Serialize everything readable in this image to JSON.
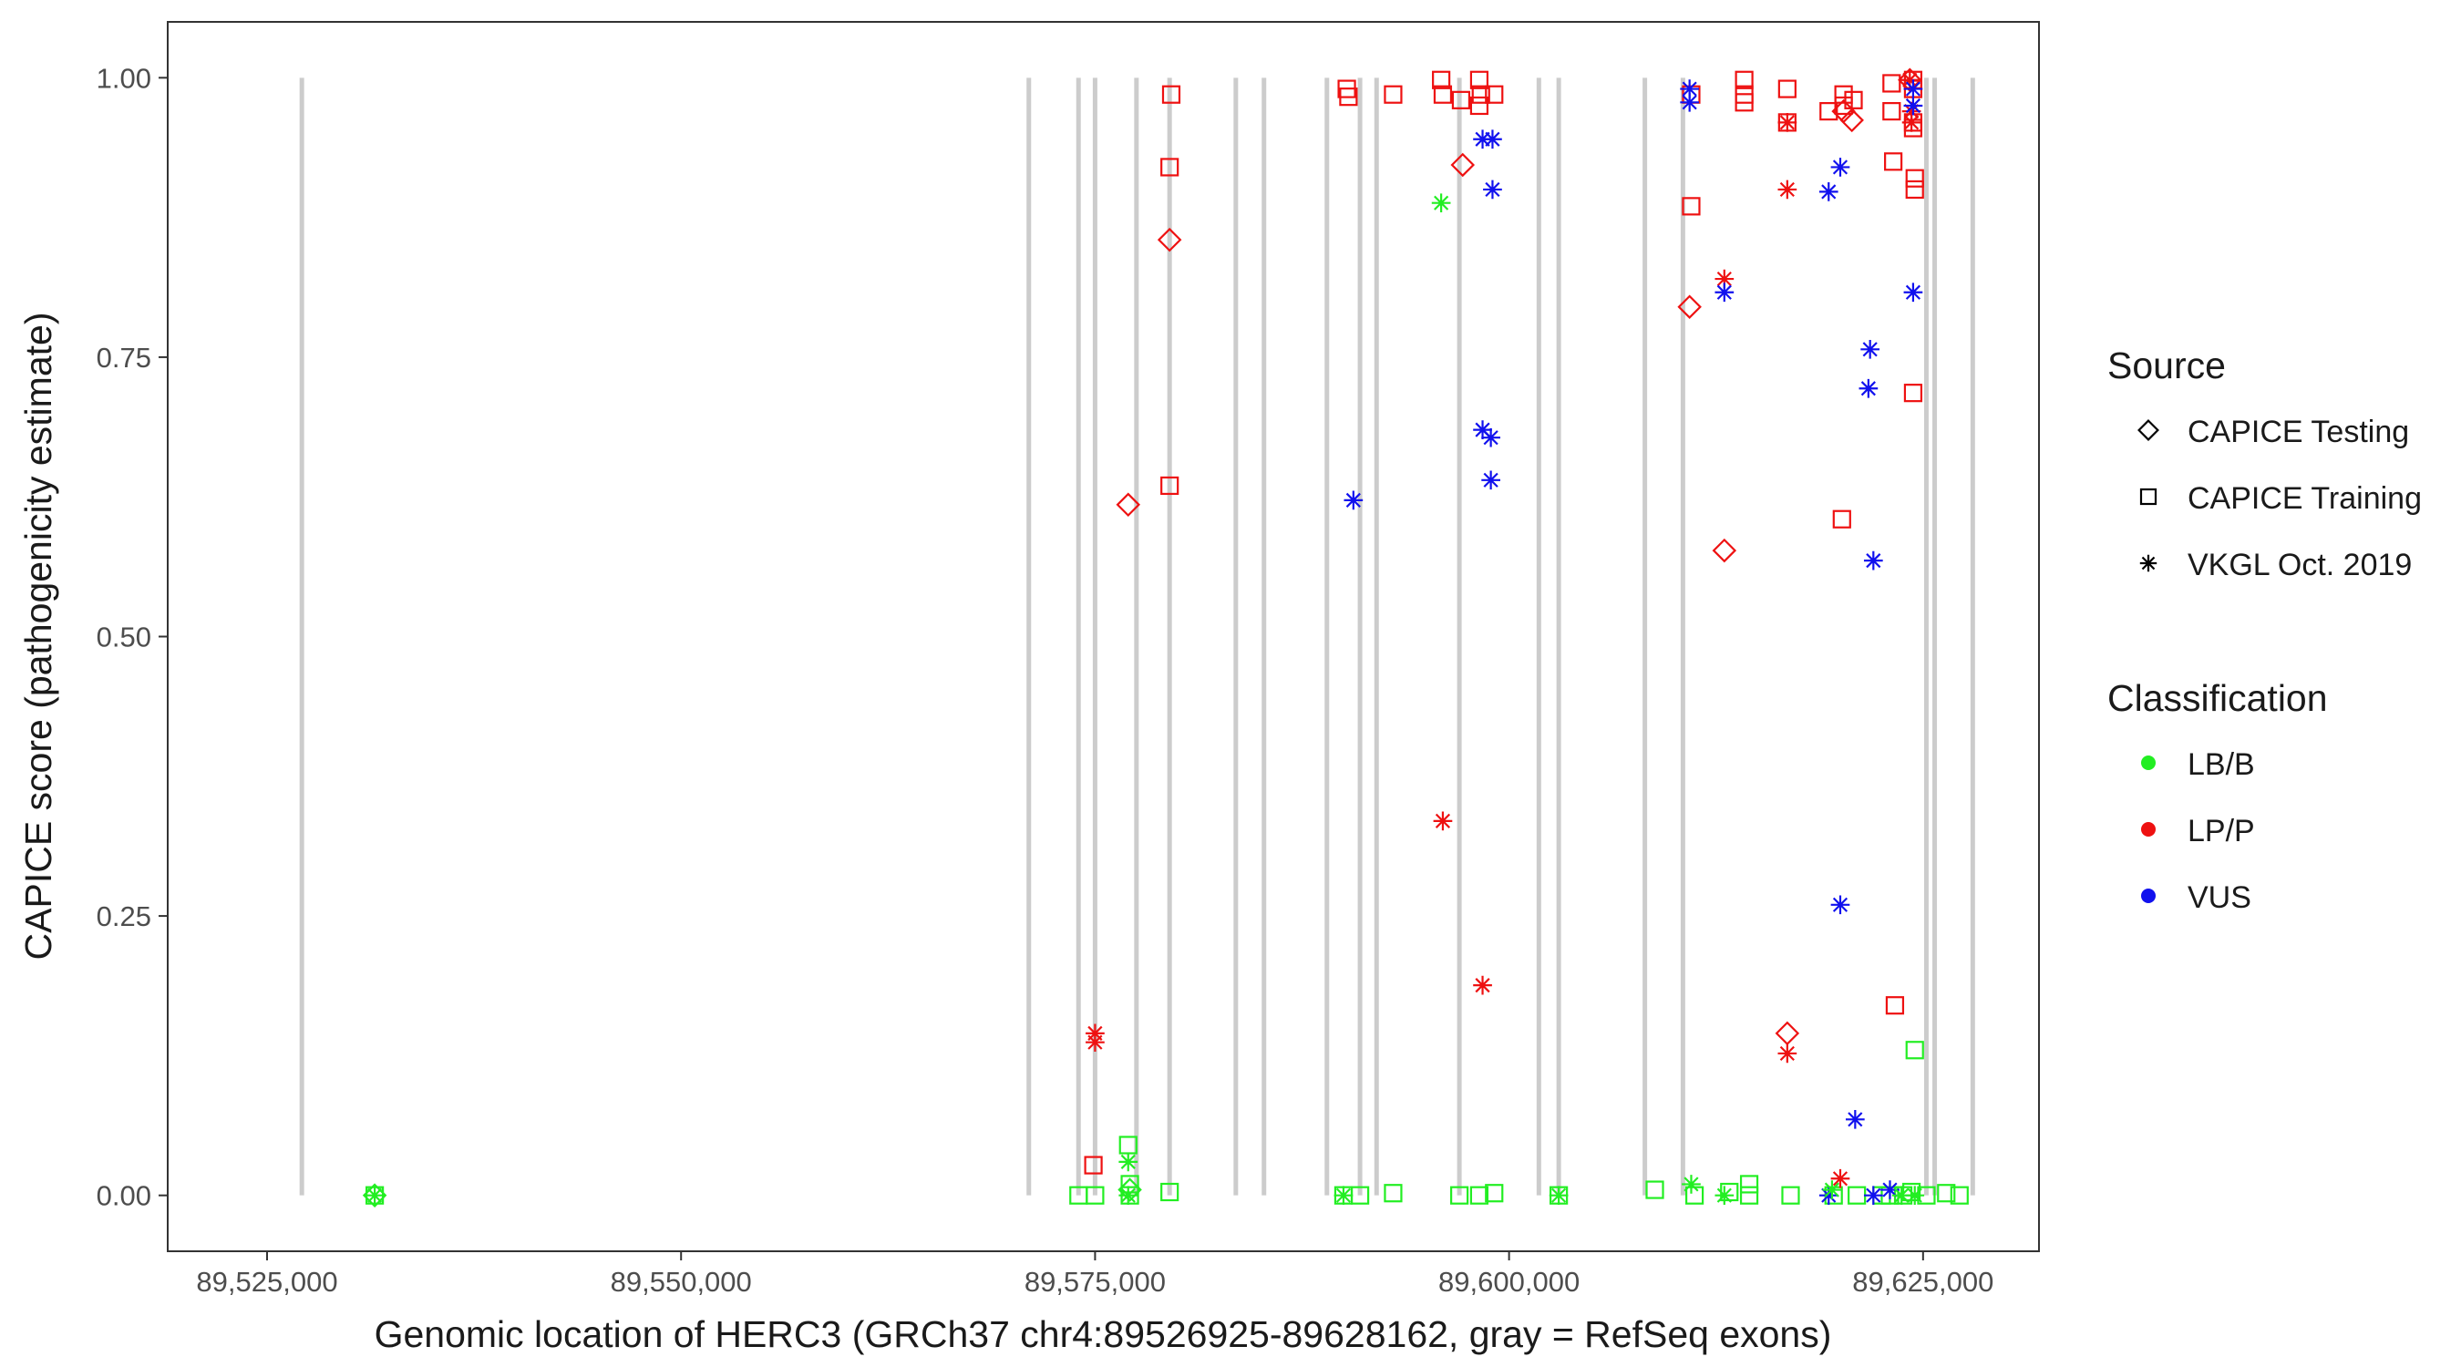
{
  "chart_data": {
    "type": "scatter",
    "title": "",
    "xlabel": "Genomic location of HERC3 (GRCh37 chr4:89526925-89628162, gray = RefSeq exons)",
    "ylabel": "CAPICE score (pathogenicity estimate)",
    "xlim": [
      89519000,
      89632000
    ],
    "ylim": [
      -0.05,
      1.05
    ],
    "x_ticks": [
      89525000,
      89550000,
      89575000,
      89600000,
      89625000
    ],
    "x_tick_labels": [
      "89,525,000",
      "89,550,000",
      "89,575,000",
      "89,600,000",
      "89,625,000"
    ],
    "y_ticks": [
      0,
      0.25,
      0.5,
      0.75,
      1
    ],
    "y_tick_labels": [
      "0.00",
      "0.25",
      "0.50",
      "0.75",
      "1.00"
    ],
    "grid": false,
    "legend_position": "right",
    "exon_color": "#cccccc",
    "exons": [
      89527100,
      89571000,
      89574000,
      89575000,
      89577500,
      89579500,
      89583500,
      89585200,
      89589000,
      89591000,
      89592000,
      89597000,
      89601800,
      89603000,
      89608200,
      89610500,
      89625200,
      89625700,
      89628000
    ],
    "legend": {
      "source_title": "Source",
      "source_entries": [
        {
          "label": "CAPICE Testing",
          "shape": "diamond"
        },
        {
          "label": "CAPICE Training",
          "shape": "square"
        },
        {
          "label": "VKGL Oct. 2019",
          "shape": "asterisk"
        }
      ],
      "class_title": "Classification",
      "class_entries": [
        {
          "label": "LB/B",
          "color": "#22ee22"
        },
        {
          "label": "LP/P",
          "color": "#ee1111"
        },
        {
          "label": "VUS",
          "color": "#1111ee"
        }
      ]
    },
    "series": [
      {
        "source": "CAPICE Training",
        "classification": "LP/P",
        "points": [
          [
            89579600,
            0.985
          ],
          [
            89579500,
            0.92
          ],
          [
            89579500,
            0.635
          ],
          [
            89574900,
            0.027
          ],
          [
            89590200,
            0.99
          ],
          [
            89590300,
            0.983
          ],
          [
            89593000,
            0.985
          ],
          [
            89595900,
            0.998
          ],
          [
            89596000,
            0.985
          ],
          [
            89597100,
            0.98
          ],
          [
            89598200,
            0.998
          ],
          [
            89598300,
            0.985
          ],
          [
            89598200,
            0.975
          ],
          [
            89599100,
            0.985
          ],
          [
            89611000,
            0.985
          ],
          [
            89611000,
            0.885
          ],
          [
            89614200,
            0.998
          ],
          [
            89614200,
            0.985
          ],
          [
            89614200,
            0.978
          ],
          [
            89616800,
            0.99
          ],
          [
            89616800,
            0.96
          ],
          [
            89619300,
            0.97
          ],
          [
            89620200,
            0.985
          ],
          [
            89620200,
            0.975
          ],
          [
            89620800,
            0.98
          ],
          [
            89620100,
            0.605
          ],
          [
            89623100,
            0.995
          ],
          [
            89623100,
            0.97
          ],
          [
            89623200,
            0.925
          ],
          [
            89623300,
            0.17
          ],
          [
            89624400,
            0.998
          ],
          [
            89624400,
            0.99
          ],
          [
            89624400,
            0.96
          ],
          [
            89624400,
            0.955
          ],
          [
            89624500,
            0.91
          ],
          [
            89624500,
            0.9
          ],
          [
            89624400,
            0.718
          ]
        ]
      },
      {
        "source": "CAPICE Training",
        "classification": "LB/B",
        "points": [
          [
            89531500,
            0.0
          ],
          [
            89574000,
            0.0
          ],
          [
            89575000,
            0.0
          ],
          [
            89577000,
            0.045
          ],
          [
            89577100,
            0.01
          ],
          [
            89577100,
            0.0
          ],
          [
            89579500,
            0.003
          ],
          [
            89590000,
            0.0
          ],
          [
            89591000,
            0.0
          ],
          [
            89593000,
            0.002
          ],
          [
            89597000,
            0.0
          ],
          [
            89598200,
            0.0
          ],
          [
            89599100,
            0.002
          ],
          [
            89603000,
            0.0
          ],
          [
            89608800,
            0.005
          ],
          [
            89611200,
            0.0
          ],
          [
            89613300,
            0.003
          ],
          [
            89614500,
            0.01
          ],
          [
            89614500,
            0.0
          ],
          [
            89617000,
            0.0
          ],
          [
            89619600,
            0.0
          ],
          [
            89621000,
            0.0
          ],
          [
            89622500,
            0.0
          ],
          [
            89623000,
            0.0
          ],
          [
            89623800,
            0.0
          ],
          [
            89624300,
            0.003
          ],
          [
            89624500,
            0.13
          ],
          [
            89625200,
            0.0
          ],
          [
            89626400,
            0.002
          ],
          [
            89627200,
            0.0
          ]
        ]
      },
      {
        "source": "CAPICE Testing",
        "classification": "LP/P",
        "points": [
          [
            89579500,
            0.855
          ],
          [
            89577000,
            0.618
          ],
          [
            89597200,
            0.922
          ],
          [
            89610900,
            0.795
          ],
          [
            89613000,
            0.577
          ],
          [
            89616800,
            0.145
          ],
          [
            89620200,
            0.97
          ],
          [
            89620700,
            0.962
          ],
          [
            89624200,
            0.998
          ]
        ]
      },
      {
        "source": "CAPICE Testing",
        "classification": "LB/B",
        "points": [
          [
            89531500,
            0.0
          ],
          [
            89577100,
            0.005
          ]
        ]
      },
      {
        "source": "VKGL Oct. 2019",
        "classification": "LP/P",
        "points": [
          [
            89575000,
            0.145
          ],
          [
            89575000,
            0.137
          ],
          [
            89596000,
            0.335
          ],
          [
            89598400,
            0.188
          ],
          [
            89613000,
            0.82
          ],
          [
            89616800,
            0.9
          ],
          [
            89616800,
            0.96
          ],
          [
            89616800,
            0.127
          ],
          [
            89620000,
            0.015
          ],
          [
            89624200,
            0.998
          ],
          [
            89624300,
            0.97
          ],
          [
            89624300,
            0.96
          ]
        ]
      },
      {
        "source": "VKGL Oct. 2019",
        "classification": "VUS",
        "points": [
          [
            89590600,
            0.622
          ],
          [
            89598400,
            0.945
          ],
          [
            89599000,
            0.945
          ],
          [
            89599000,
            0.9
          ],
          [
            89598400,
            0.685
          ],
          [
            89598900,
            0.678
          ],
          [
            89598900,
            0.64
          ],
          [
            89610900,
            0.99
          ],
          [
            89610900,
            0.978
          ],
          [
            89613000,
            0.808
          ],
          [
            89619300,
            0.898
          ],
          [
            89620000,
            0.92
          ],
          [
            89621800,
            0.757
          ],
          [
            89621700,
            0.722
          ],
          [
            89622000,
            0.568
          ],
          [
            89620000,
            0.26
          ],
          [
            89620900,
            0.068
          ],
          [
            89619300,
            0.0
          ],
          [
            89622000,
            0.0
          ],
          [
            89623000,
            0.005
          ],
          [
            89624400,
            0.808
          ],
          [
            89624400,
            0.99
          ],
          [
            89624400,
            0.975
          ]
        ]
      },
      {
        "source": "VKGL Oct. 2019",
        "classification": "LB/B",
        "points": [
          [
            89531500,
            0.0
          ],
          [
            89577000,
            0.03
          ],
          [
            89577000,
            0.0
          ],
          [
            89595900,
            0.888
          ],
          [
            89590000,
            0.0
          ],
          [
            89603000,
            0.0
          ],
          [
            89611000,
            0.01
          ],
          [
            89613000,
            0.0
          ],
          [
            89619500,
            0.005
          ],
          [
            89623700,
            0.0
          ],
          [
            89624500,
            0.0
          ]
        ]
      }
    ]
  }
}
